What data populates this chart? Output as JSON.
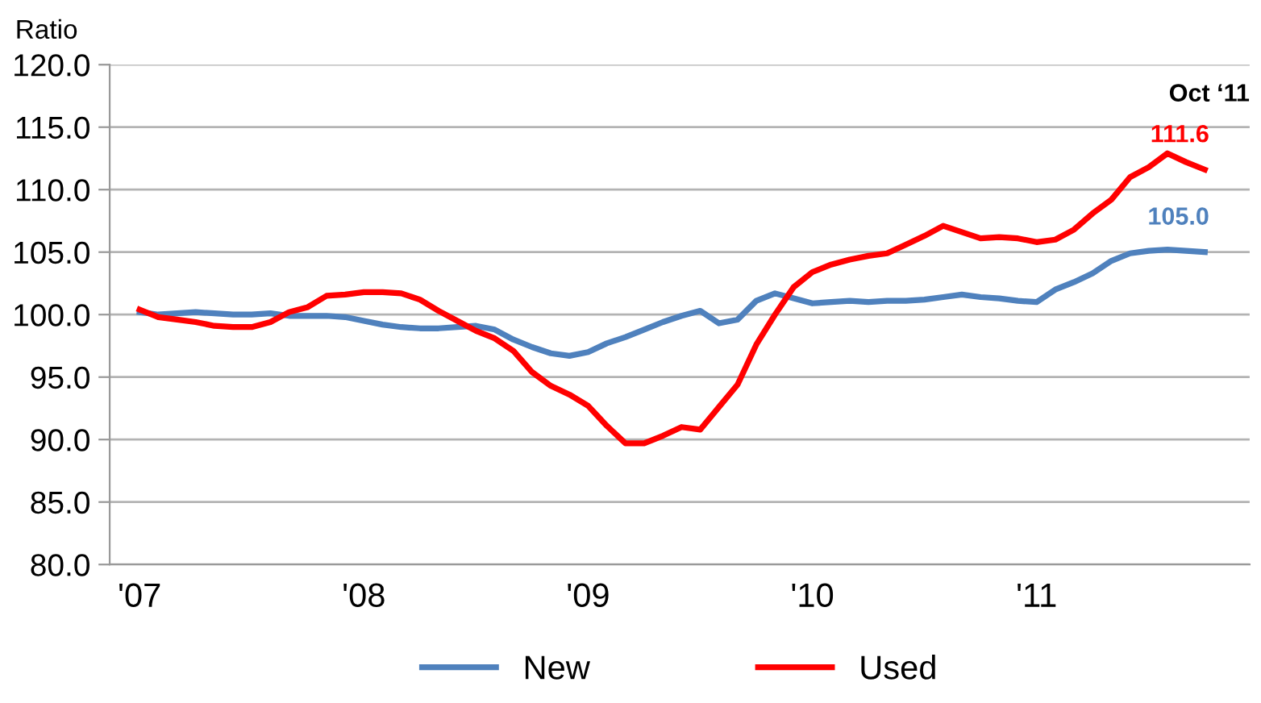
{
  "chart_data": {
    "type": "line",
    "ylabel": "Ratio",
    "categories": [
      "'07",
      null,
      null,
      null,
      null,
      null,
      null,
      null,
      null,
      null,
      null,
      null,
      "'08",
      null,
      null,
      null,
      null,
      null,
      null,
      null,
      null,
      null,
      null,
      null,
      "'09",
      null,
      null,
      null,
      null,
      null,
      null,
      null,
      null,
      null,
      null,
      null,
      "'10",
      null,
      null,
      null,
      null,
      null,
      null,
      null,
      null,
      null,
      null,
      null,
      "'11",
      null,
      null,
      null,
      null,
      null,
      null,
      null,
      null,
      null
    ],
    "series": [
      {
        "name": "New",
        "color": "#4f81bd",
        "values": [
          100.2,
          100.0,
          100.1,
          100.2,
          100.1,
          100.0,
          100.0,
          100.1,
          99.9,
          99.9,
          99.9,
          99.8,
          99.5,
          99.2,
          99.0,
          98.9,
          98.9,
          99.0,
          99.1,
          98.8,
          98.0,
          97.4,
          96.9,
          96.7,
          97.0,
          97.7,
          98.2,
          98.8,
          99.4,
          99.9,
          100.3,
          99.3,
          99.6,
          101.1,
          101.7,
          101.3,
          100.9,
          101.0,
          101.1,
          101.0,
          101.1,
          101.1,
          101.2,
          101.4,
          101.6,
          101.4,
          101.3,
          101.1,
          101.0,
          102.0,
          102.6,
          103.3,
          104.3,
          104.9,
          105.1,
          105.2,
          105.1,
          105.0
        ],
        "value_labels": [
          null,
          null,
          null,
          null,
          null,
          null,
          null,
          null,
          null,
          null,
          null,
          null,
          null,
          null,
          null,
          null,
          null,
          null,
          null,
          null,
          null,
          null,
          null,
          null,
          null,
          null,
          null,
          null,
          null,
          null,
          null,
          null,
          null,
          null,
          null,
          null,
          null,
          null,
          null,
          null,
          null,
          null,
          null,
          null,
          null,
          null,
          null,
          null,
          null,
          null,
          null,
          null,
          null,
          null,
          null,
          null,
          null,
          "105.0"
        ]
      },
      {
        "name": "Used",
        "color": "#ff0000",
        "values": [
          100.4,
          99.8,
          99.6,
          99.4,
          99.1,
          99.0,
          99.0,
          99.4,
          100.2,
          100.6,
          101.5,
          101.6,
          101.8,
          101.8,
          101.7,
          101.2,
          100.3,
          99.5,
          98.7,
          98.1,
          97.1,
          95.4,
          94.3,
          93.6,
          92.7,
          91.1,
          89.7,
          89.7,
          90.3,
          91.0,
          90.8,
          92.6,
          94.4,
          97.6,
          100.0,
          102.2,
          103.4,
          104.0,
          104.4,
          104.7,
          104.9,
          105.6,
          106.3,
          107.1,
          106.6,
          106.1,
          106.2,
          106.1,
          105.8,
          106.0,
          106.8,
          108.1,
          109.2,
          111.0,
          111.8,
          112.9,
          112.2,
          111.6
        ],
        "value_labels": [
          null,
          null,
          null,
          null,
          null,
          null,
          null,
          null,
          null,
          null,
          null,
          null,
          null,
          null,
          null,
          null,
          null,
          null,
          null,
          null,
          null,
          null,
          null,
          null,
          null,
          null,
          null,
          null,
          null,
          null,
          null,
          null,
          null,
          null,
          null,
          null,
          null,
          null,
          null,
          null,
          null,
          null,
          null,
          null,
          null,
          null,
          null,
          null,
          null,
          null,
          null,
          null,
          null,
          null,
          null,
          null,
          null,
          "111.6"
        ]
      }
    ],
    "annotations": [
      "Oct ‘11"
    ],
    "ylim": [
      80,
      120
    ],
    "yticks": [
      {
        "value": 80,
        "label": "80.0"
      },
      {
        "value": 85,
        "label": "85.0"
      },
      {
        "value": 90,
        "label": "90.0"
      },
      {
        "value": 95,
        "label": "95.0"
      },
      {
        "value": 100,
        "label": "100.0"
      },
      {
        "value": 105,
        "label": "105.0"
      },
      {
        "value": 110,
        "label": "110.0"
      },
      {
        "value": 115,
        "label": "115.0"
      },
      {
        "value": 120,
        "label": "120.0"
      }
    ],
    "grid": "y",
    "legend": "bottom",
    "marker": "none",
    "line_style": "solid"
  }
}
